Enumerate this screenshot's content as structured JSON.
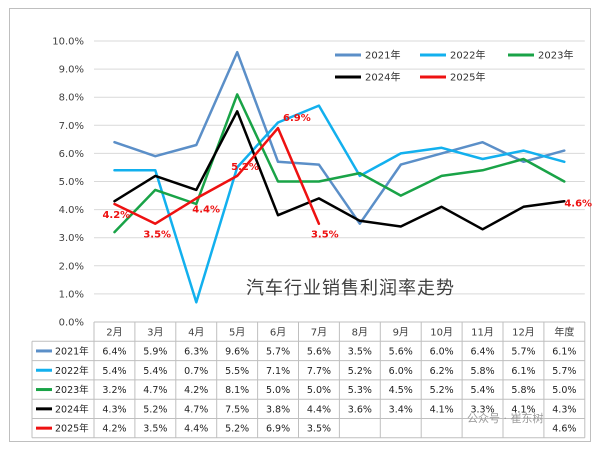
{
  "chart_data": {
    "type": "line",
    "title": "汽车行业销售利润率走势",
    "categories": [
      "2月",
      "3月",
      "4月",
      "5月",
      "6月",
      "7月",
      "8月",
      "9月",
      "10月",
      "11月",
      "12月",
      "年度"
    ],
    "y_ticks": [
      "0.0%",
      "1.0%",
      "2.0%",
      "3.0%",
      "4.0%",
      "5.0%",
      "6.0%",
      "7.0%",
      "8.0%",
      "9.0%",
      "10.0%"
    ],
    "ylim": [
      0,
      10
    ],
    "y_unit": "%",
    "grid": "horizontal",
    "legend_position": "top-right",
    "series": [
      {
        "name": "2021年",
        "color": "#5b8fc8",
        "values": [
          6.4,
          5.9,
          6.3,
          9.6,
          5.7,
          5.6,
          3.5,
          5.6,
          6.0,
          6.4,
          5.7,
          6.1
        ],
        "labels": [
          "6.4%",
          "5.9%",
          "6.3%",
          "9.6%",
          "5.7%",
          "5.6%",
          "3.5%",
          "5.6%",
          "6.0%",
          "6.4%",
          "5.7%",
          "6.1%"
        ]
      },
      {
        "name": "2022年",
        "color": "#12b0ee",
        "values": [
          5.4,
          5.4,
          0.7,
          5.5,
          7.1,
          7.7,
          5.2,
          6.0,
          6.2,
          5.8,
          6.1,
          5.7
        ],
        "labels": [
          "5.4%",
          "5.4%",
          "0.7%",
          "5.5%",
          "7.1%",
          "7.7%",
          "5.2%",
          "6.0%",
          "6.2%",
          "5.8%",
          "6.1%",
          "5.7%"
        ]
      },
      {
        "name": "2023年",
        "color": "#19a347",
        "values": [
          3.2,
          4.7,
          4.2,
          8.1,
          5.0,
          5.0,
          5.3,
          4.5,
          5.2,
          5.4,
          5.8,
          5.0
        ],
        "labels": [
          "3.2%",
          "4.7%",
          "4.2%",
          "8.1%",
          "5.0%",
          "5.0%",
          "5.3%",
          "4.5%",
          "5.2%",
          "5.4%",
          "5.8%",
          "5.0%"
        ]
      },
      {
        "name": "2024年",
        "color": "#000000",
        "values": [
          4.3,
          5.2,
          4.7,
          7.5,
          3.8,
          4.4,
          3.6,
          3.4,
          4.1,
          3.3,
          4.1,
          4.3
        ],
        "labels": [
          "4.3%",
          "5.2%",
          "4.7%",
          "7.5%",
          "3.8%",
          "4.4%",
          "3.6%",
          "3.4%",
          "4.1%",
          "3.3%",
          "4.1%",
          "4.3%"
        ]
      },
      {
        "name": "2025年",
        "color": "#ee1111",
        "values": [
          4.2,
          3.5,
          4.4,
          5.2,
          6.9,
          3.5,
          null,
          null,
          null,
          null,
          null,
          4.6
        ],
        "labels": [
          "4.2%",
          "3.5%",
          "4.4%",
          "5.2%",
          "6.9%",
          "3.5%",
          "",
          "",
          "",
          "",
          "",
          "4.6%"
        ],
        "line_points": 6
      }
    ],
    "annotations": [
      {
        "text": "4.2%",
        "cat": 0,
        "value": 4.2
      },
      {
        "text": "3.5%",
        "cat": 1,
        "value": 3.5
      },
      {
        "text": "4.4%",
        "cat": 2,
        "value": 4.4
      },
      {
        "text": "5.2%",
        "cat": 3,
        "value": 5.2
      },
      {
        "text": "6.9%",
        "cat": 4,
        "value": 6.9
      },
      {
        "text": "3.5%",
        "cat": 5,
        "value": 3.5
      },
      {
        "text": "4.6%",
        "cat": 11,
        "value": 4.6
      }
    ]
  },
  "watermark": "公众号 · 崔东树"
}
